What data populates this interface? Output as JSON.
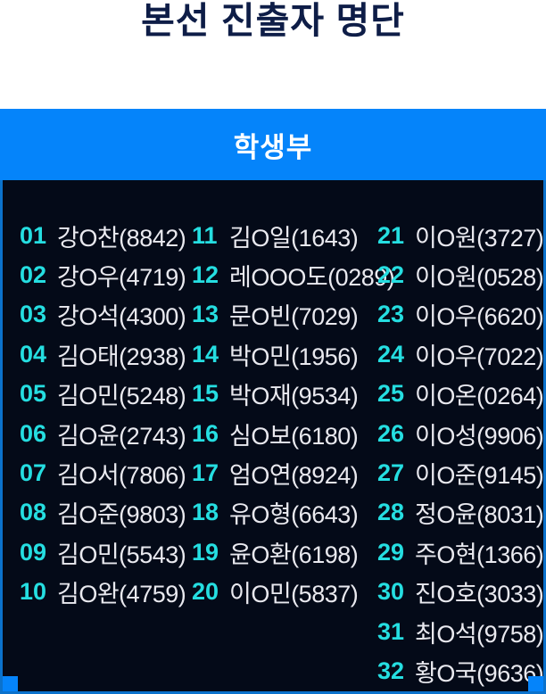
{
  "page": {
    "title": "본선 진출자 명단"
  },
  "section": {
    "header": "학생부"
  },
  "colors": {
    "accent_blue": "#0584fa",
    "border_blue": "#0b72cc",
    "panel_bg": "#040a18",
    "title_navy": "#0e1d47",
    "number_cyan": "#25dee1",
    "name_white": "#e9e9ef"
  },
  "roster": {
    "columns": [
      [
        {
          "no": "01",
          "label": "강O찬(8842)"
        },
        {
          "no": "02",
          "label": "강O우(4719)"
        },
        {
          "no": "03",
          "label": "강O석(4300)"
        },
        {
          "no": "04",
          "label": "김O태(2938)"
        },
        {
          "no": "05",
          "label": "김O민(5248)"
        },
        {
          "no": "06",
          "label": "김O윤(2743)"
        },
        {
          "no": "07",
          "label": "김O서(7806)"
        },
        {
          "no": "08",
          "label": "김O준(9803)"
        },
        {
          "no": "09",
          "label": "김O민(5543)"
        },
        {
          "no": "10",
          "label": "김O완(4759)"
        }
      ],
      [
        {
          "no": "11",
          "label": "김O일(1643)"
        },
        {
          "no": "12",
          "label": "레OOO도(0289)"
        },
        {
          "no": "13",
          "label": "문O빈(7029)"
        },
        {
          "no": "14",
          "label": "박O민(1956)"
        },
        {
          "no": "15",
          "label": "박O재(9534)"
        },
        {
          "no": "16",
          "label": "심O보(6180)"
        },
        {
          "no": "17",
          "label": "엄O연(8924)"
        },
        {
          "no": "18",
          "label": "유O형(6643)"
        },
        {
          "no": "19",
          "label": "윤O환(6198)"
        },
        {
          "no": "20",
          "label": "이O민(5837)"
        }
      ],
      [
        {
          "no": "21",
          "label": "이O원(3727)"
        },
        {
          "no": "22",
          "label": "이O원(0528)"
        },
        {
          "no": "23",
          "label": "이O우(6620)"
        },
        {
          "no": "24",
          "label": "이O우(7022)"
        },
        {
          "no": "25",
          "label": "이O온(0264)"
        },
        {
          "no": "26",
          "label": "이O성(9906)"
        },
        {
          "no": "27",
          "label": "이O준(9145)"
        },
        {
          "no": "28",
          "label": "정O윤(8031)"
        },
        {
          "no": "29",
          "label": "주O현(1366)"
        },
        {
          "no": "30",
          "label": "진O호(3033)"
        },
        {
          "no": "31",
          "label": "최O석(9758)"
        },
        {
          "no": "32",
          "label": "황O국(9636)"
        }
      ]
    ]
  }
}
